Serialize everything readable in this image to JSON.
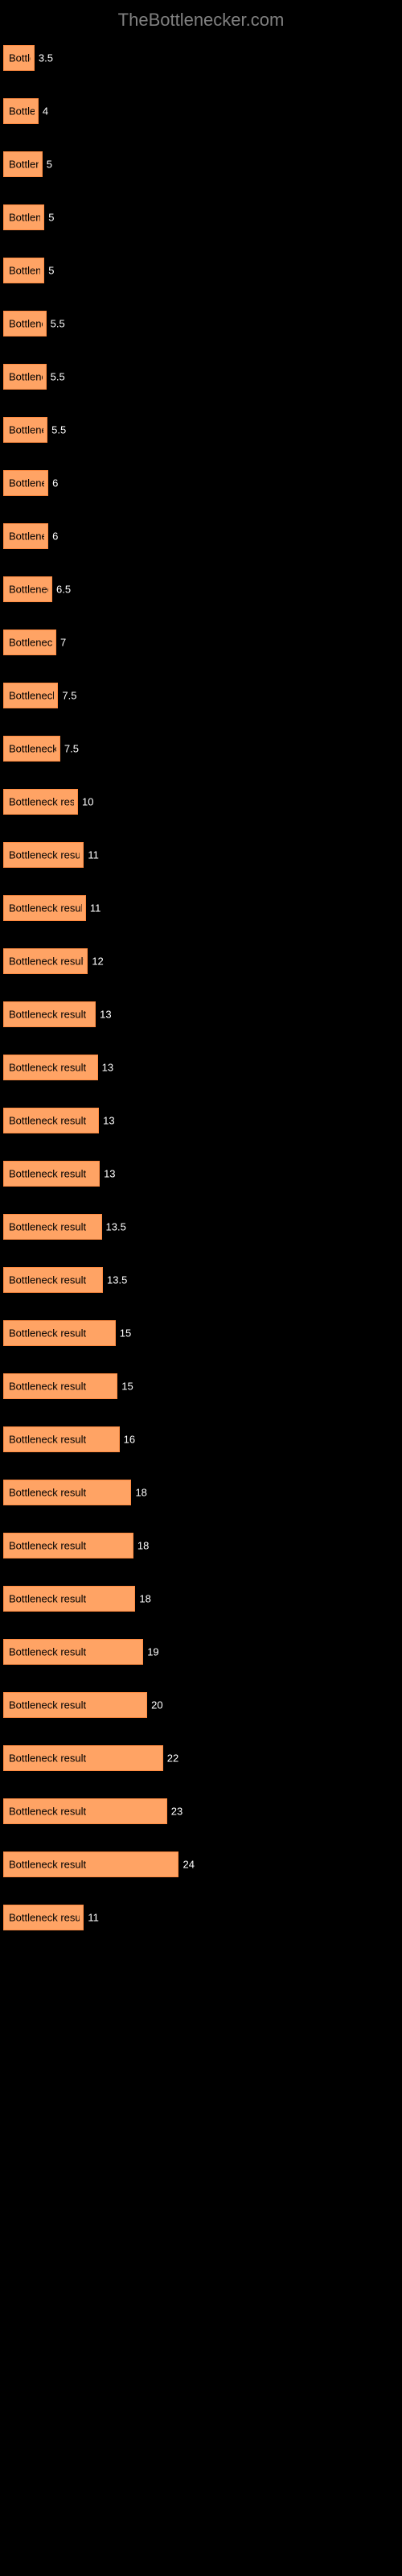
{
  "header": {
    "title": "TheBottlenecker.com"
  },
  "chart": {
    "type": "bar",
    "bar_color": "#ffa364",
    "bar_border_color": "#ff8c42",
    "background_color": "#000000",
    "text_color": "#ffffff",
    "bar_text_color": "#000000",
    "bar_text": "Bottleneck result",
    "max_value": 50,
    "bars": [
      {
        "label": "",
        "value": 3.5,
        "width_pct": 7.5
      },
      {
        "label": "",
        "value": 4.0,
        "width_pct": 8.5
      },
      {
        "label": "",
        "value": 5.0,
        "width_pct": 9.5
      },
      {
        "label": "",
        "value": 5.0,
        "width_pct": 10.0
      },
      {
        "label": "",
        "value": 5.0,
        "width_pct": 10.0
      },
      {
        "label": "",
        "value": 5.5,
        "width_pct": 10.5
      },
      {
        "label": "",
        "value": 5.5,
        "width_pct": 10.5
      },
      {
        "label": "",
        "value": 5.5,
        "width_pct": 10.8
      },
      {
        "label": "",
        "value": 6.0,
        "width_pct": 11.0
      },
      {
        "label": "",
        "value": 6.0,
        "width_pct": 11.0
      },
      {
        "label": "",
        "value": 6.5,
        "width_pct": 12.0
      },
      {
        "label": "",
        "value": 7.0,
        "width_pct": 13.0
      },
      {
        "label": "",
        "value": 7.5,
        "width_pct": 13.5
      },
      {
        "label": "",
        "value": 7.5,
        "width_pct": 14.0
      },
      {
        "label": "",
        "value": 10.0,
        "width_pct": 18.5
      },
      {
        "label": "",
        "value": 11.0,
        "width_pct": 20.0
      },
      {
        "label": "",
        "value": 11.0,
        "width_pct": 20.5
      },
      {
        "label": "",
        "value": 12.0,
        "width_pct": 21.0
      },
      {
        "label": "",
        "value": 13.0,
        "width_pct": 23.0
      },
      {
        "label": "",
        "value": 13.0,
        "width_pct": 23.5
      },
      {
        "label": "",
        "value": 13.0,
        "width_pct": 23.8
      },
      {
        "label": "",
        "value": 13.0,
        "width_pct": 24.0
      },
      {
        "label": "",
        "value": 13.5,
        "width_pct": 24.5
      },
      {
        "label": "",
        "value": 13.5,
        "width_pct": 24.8
      },
      {
        "label": "",
        "value": 15.0,
        "width_pct": 28.0
      },
      {
        "label": "",
        "value": 15.0,
        "width_pct": 28.5
      },
      {
        "label": "",
        "value": 16.0,
        "width_pct": 29.0
      },
      {
        "label": "",
        "value": 18.0,
        "width_pct": 32.0
      },
      {
        "label": "",
        "value": 18.0,
        "width_pct": 32.5
      },
      {
        "label": "",
        "value": 18.0,
        "width_pct": 33.0
      },
      {
        "label": "",
        "value": 19.0,
        "width_pct": 35.0
      },
      {
        "label": "",
        "value": 20.0,
        "width_pct": 36.0
      },
      {
        "label": "",
        "value": 22.0,
        "width_pct": 40.0
      },
      {
        "label": "",
        "value": 23.0,
        "width_pct": 41.0
      },
      {
        "label": "",
        "value": 24.0,
        "width_pct": 44.0
      },
      {
        "label": "",
        "value": 11.0,
        "width_pct": 20.0
      }
    ]
  }
}
